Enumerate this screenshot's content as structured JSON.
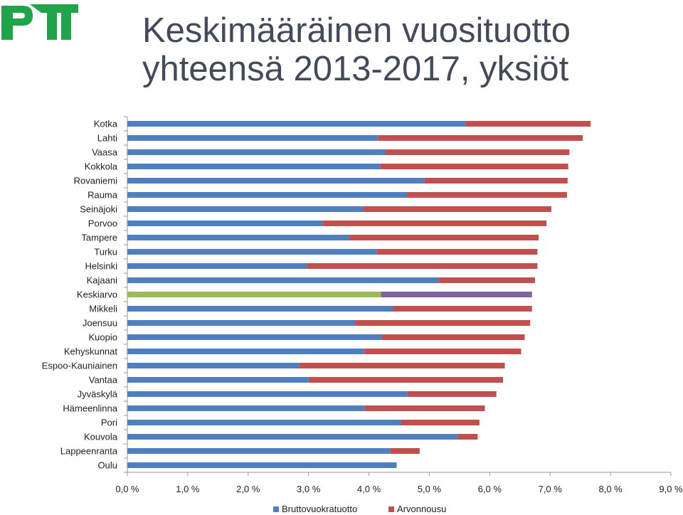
{
  "title_line1": "Keskimääräinen vuosituotto",
  "title_line2": "yhteensä 2013-2017, yksiöt",
  "logo": {
    "text": "PTT",
    "color": "#1fa44a"
  },
  "colors": {
    "series1": "#4f7fbf",
    "series2": "#c0504d",
    "highlight1": "#9bbb59",
    "highlight2": "#8064a2",
    "axis": "#9a9a9a"
  },
  "chart_data": {
    "type": "bar",
    "orientation": "horizontal",
    "stacked": true,
    "categories": [
      "Kotka",
      "Lahti",
      "Vaasa",
      "Kokkola",
      "Rovaniemi",
      "Rauma",
      "Seinäjoki",
      "Porvoo",
      "Tampere",
      "Turku",
      "Helsinki",
      "Kajaani",
      "Keskiarvo",
      "Mikkeli",
      "Joensuu",
      "Kuopio",
      "Kehyskunnat",
      "Espoo-Kauniainen",
      "Vantaa",
      "Jyväskylä",
      "Hämeenlinna",
      "Pori",
      "Kouvola",
      "Lappeenranta",
      "Oulu"
    ],
    "series": [
      {
        "name": "Bruttovuokratuotto",
        "values": [
          5.6,
          4.15,
          4.27,
          4.19,
          4.92,
          4.63,
          3.9,
          3.23,
          3.67,
          4.13,
          2.97,
          5.15,
          4.2,
          4.4,
          3.77,
          4.21,
          3.92,
          2.85,
          3.0,
          4.64,
          3.93,
          4.53,
          5.47,
          4.35,
          4.46
        ]
      },
      {
        "name": "Arvonnousu",
        "values": [
          2.07,
          3.39,
          3.05,
          3.11,
          2.37,
          2.65,
          3.12,
          3.71,
          3.14,
          2.66,
          3.82,
          1.6,
          2.5,
          2.3,
          2.9,
          2.37,
          2.6,
          3.4,
          3.22,
          1.47,
          1.99,
          1.3,
          0.33,
          0.49,
          0.0
        ]
      }
    ],
    "highlight_category": "Keskiarvo",
    "xlim": [
      0,
      9
    ],
    "xticks": [
      "0,0 %",
      "1,0 %",
      "2,0 %",
      "3,0 %",
      "4,0 %",
      "5,0 %",
      "6,0 %",
      "7,0 %",
      "8,0 %",
      "9,0 %"
    ],
    "legend_position": "bottom",
    "xlabel": "",
    "ylabel": ""
  }
}
